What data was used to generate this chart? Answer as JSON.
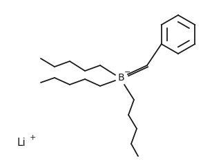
{
  "bg_color": "#ffffff",
  "line_color": "#1a1a1a",
  "line_width": 1.3,
  "figsize": [
    3.07,
    2.34
  ],
  "dpi": 100,
  "B_label": "B",
  "B_sup": "−",
  "li_label": "Li",
  "li_sup": "+"
}
